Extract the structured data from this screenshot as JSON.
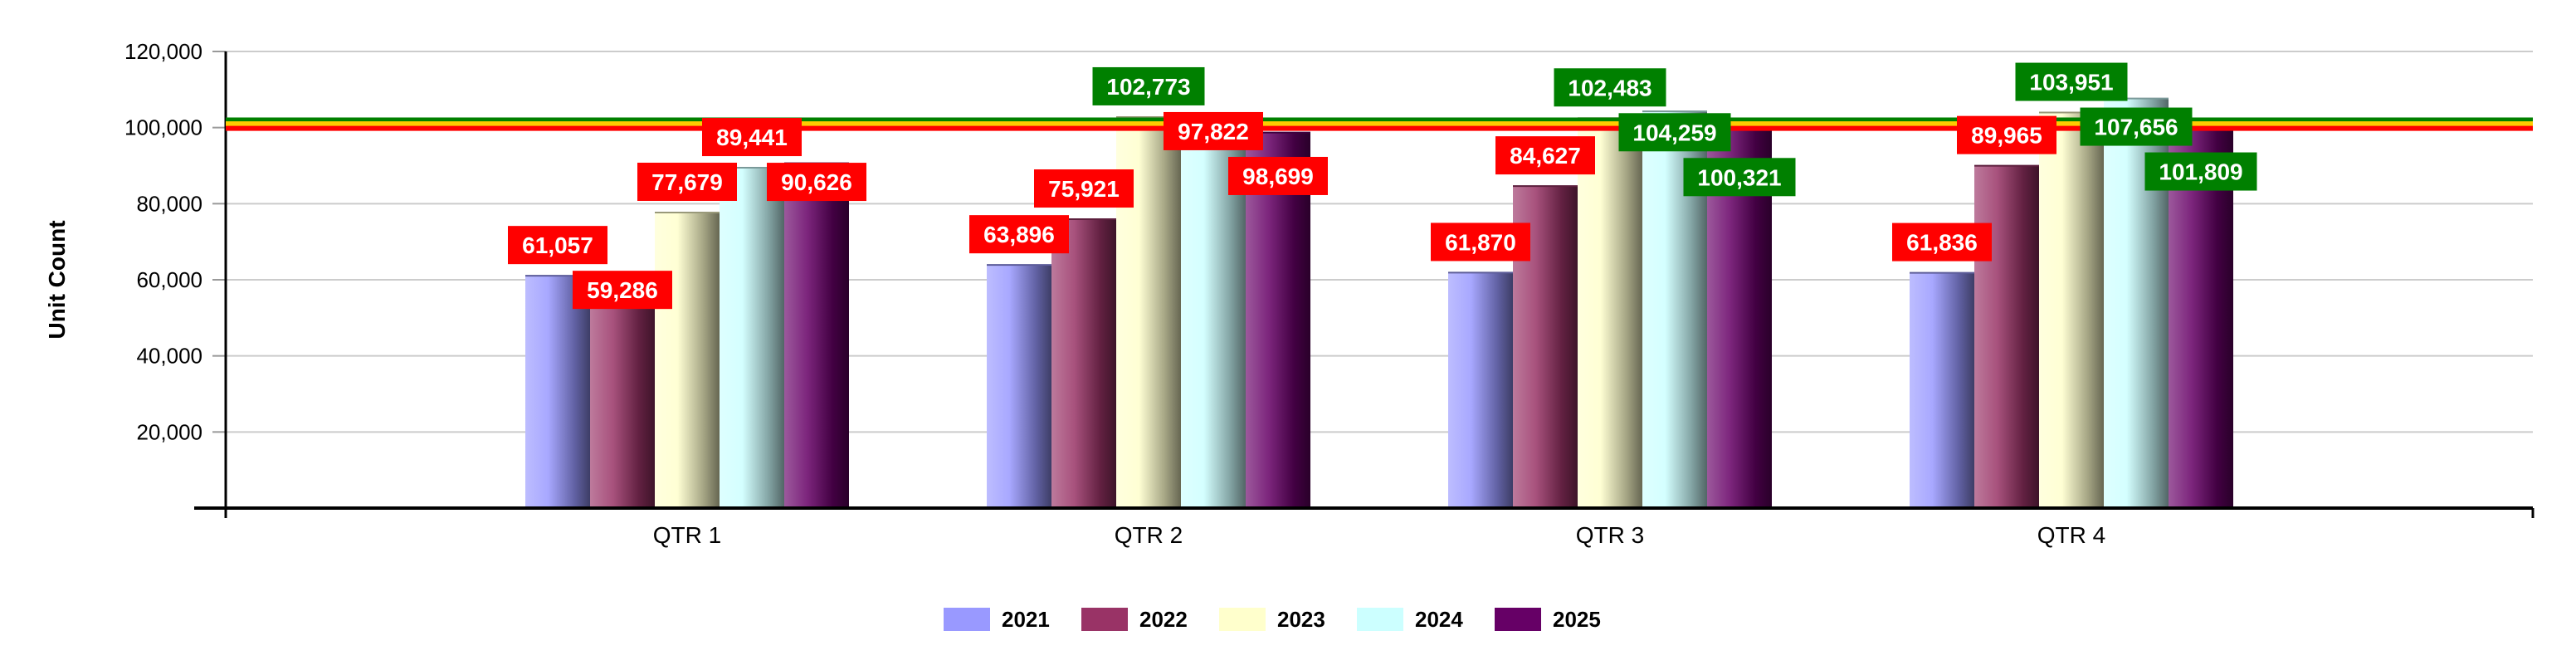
{
  "chart_data": {
    "type": "bar",
    "title": "",
    "xlabel": "",
    "ylabel": "Unit Count",
    "ylim": [
      0,
      120000
    ],
    "yticks": [
      0,
      20000,
      40000,
      60000,
      80000,
      100000,
      120000
    ],
    "ytick_labels": [
      "",
      "20,000",
      "40,000",
      "60,000",
      "80,000",
      "100,000",
      "120,000"
    ],
    "grid": true,
    "legend_position": "bottom",
    "categories": [
      "QTR 1",
      "QTR 2",
      "QTR 3",
      "QTR 4"
    ],
    "series": [
      {
        "name": "2021",
        "color": "#9999ff",
        "values": [
          61057,
          63896,
          61870,
          61836
        ]
      },
      {
        "name": "2022",
        "color": "#993366",
        "values": [
          59286,
          75921,
          84627,
          89965
        ]
      },
      {
        "name": "2023",
        "color": "#ffffcc",
        "values": [
          77679,
          102773,
          102483,
          103951
        ]
      },
      {
        "name": "2024",
        "color": "#ccffff",
        "values": [
          89441,
          97822,
          104259,
          107656
        ]
      },
      {
        "name": "2025",
        "color": "#660066",
        "values": [
          90626,
          98699,
          100321,
          101809
        ]
      }
    ],
    "data_labels": [
      [
        "61,057",
        "59,286",
        "77,679",
        "89,441",
        "90,626"
      ],
      [
        "63,896",
        "75,921",
        "102,773",
        "97,822",
        "98,699"
      ],
      [
        "61,870",
        "84,627",
        "102,483",
        "104,259",
        "100,321"
      ],
      [
        "61,836",
        "89,965",
        "103,951",
        "107,656",
        "101,809"
      ]
    ],
    "reference_lines": [
      {
        "value": 102000,
        "color": "#008000"
      },
      {
        "value": 101000,
        "color": "#ffcc00"
      },
      {
        "value": 99800,
        "color": "#ff0000"
      }
    ],
    "label_colors": {
      "above": "#008000",
      "below": "#ff0000",
      "text": "#ffffff"
    }
  }
}
